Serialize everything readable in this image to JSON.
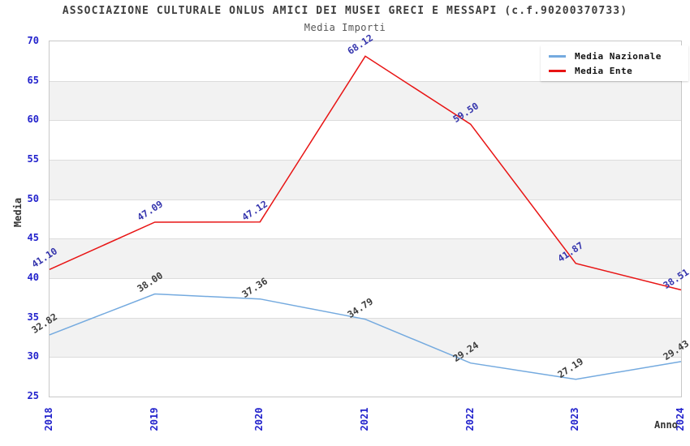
{
  "chart_data": {
    "type": "line",
    "title": "ASSOCIAZIONE CULTURALE ONLUS AMICI DEI MUSEI GRECI E MESSAPI (c.f.90200370733)",
    "subtitle": "Media Importi",
    "xlabel": "Anno",
    "ylabel": "Media",
    "categories": [
      "2018",
      "2019",
      "2020",
      "2021",
      "2022",
      "2023",
      "2024"
    ],
    "series": [
      {
        "name": "Media Nazionale",
        "color": "#74aadf",
        "label_color": "#3c3c3c",
        "values": [
          32.82,
          38.0,
          37.36,
          34.79,
          29.24,
          27.19,
          29.43
        ],
        "labels": [
          "32.82",
          "38.00",
          "37.36",
          "34.79",
          "29.24",
          "27.19",
          "29.43"
        ]
      },
      {
        "name": "Media Ente",
        "color": "#e81414",
        "label_color": "#3535ad",
        "values": [
          41.1,
          47.09,
          47.12,
          68.12,
          59.5,
          41.87,
          38.51
        ],
        "labels": [
          "41.10",
          "47.09",
          "47.12",
          "68.12",
          "59.50",
          "41.87",
          "38.51"
        ]
      }
    ],
    "ylim": [
      25,
      70
    ],
    "ytick_step": 5,
    "y_ticks": [
      "70",
      "65",
      "60",
      "55",
      "50",
      "45",
      "40",
      "35",
      "30",
      "25"
    ],
    "legend_position": "top-right",
    "grid": "horizontal-bands",
    "band_colors": [
      "#ffffff",
      "#f2f2f2"
    ],
    "tick_color": "#2222cc"
  }
}
